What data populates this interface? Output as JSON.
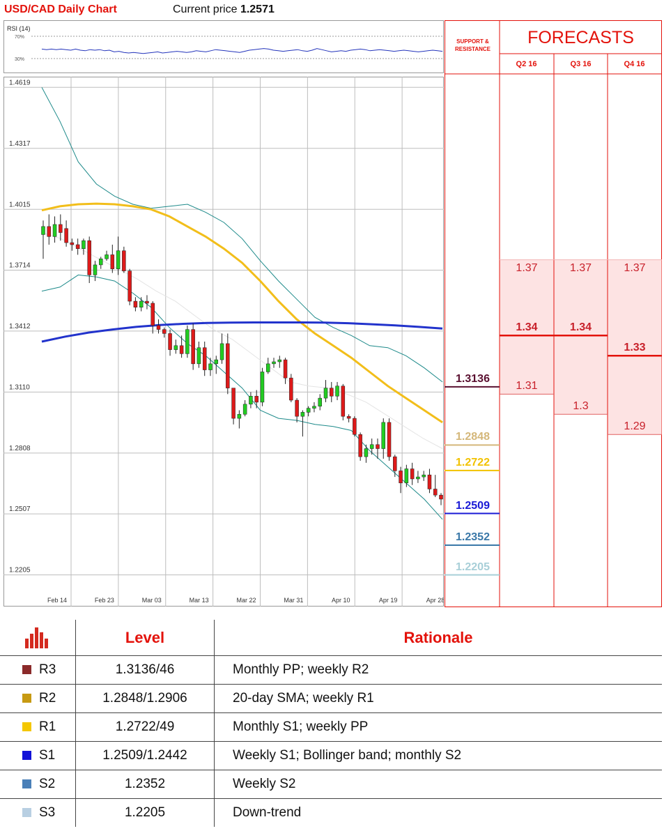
{
  "header": {
    "title": "USD/CAD Daily Chart",
    "price_label": "Current price",
    "price_value": "1.2571"
  },
  "rsi": {
    "label": "RSI (14)",
    "levels": [
      "70%",
      "30%"
    ],
    "values": [
      47,
      46,
      47,
      46,
      47,
      46,
      45,
      47,
      45,
      44,
      46,
      45,
      46,
      44,
      45,
      42,
      43,
      41,
      40,
      41,
      40,
      39,
      40,
      41,
      42,
      40,
      41,
      42,
      43,
      42,
      41,
      42,
      44,
      43,
      42,
      44,
      46,
      45,
      44,
      43,
      42,
      41,
      43,
      45,
      46,
      47,
      48,
      47,
      45,
      44,
      43,
      44,
      45,
      46,
      44,
      43,
      45,
      48,
      46,
      44,
      42,
      43,
      44,
      43,
      45,
      46,
      47,
      46,
      44,
      45,
      46,
      45,
      44,
      43,
      44,
      45,
      44,
      43,
      42,
      43,
      44,
      45,
      44,
      43
    ]
  },
  "chart_data": {
    "type": "candlestick",
    "title": "USD/CAD Daily Chart",
    "y_ticks": [
      "1.4619",
      "1.4317",
      "1.4015",
      "1.3714",
      "1.3412",
      "1.3110",
      "1.2808",
      "1.2507",
      "1.2205"
    ],
    "ylim": [
      1.21,
      1.462
    ],
    "x_ticks": [
      "Feb 14",
      "Feb 23",
      "Mar 03",
      "Mar 13",
      "Mar 22",
      "Mar 31",
      "Apr 10",
      "Apr 19",
      "Apr 28"
    ],
    "candles": [
      {
        "o": 1.389,
        "h": 1.396,
        "l": 1.377,
        "c": 1.393
      },
      {
        "o": 1.393,
        "h": 1.399,
        "l": 1.384,
        "c": 1.388
      },
      {
        "o": 1.388,
        "h": 1.398,
        "l": 1.385,
        "c": 1.394
      },
      {
        "o": 1.394,
        "h": 1.399,
        "l": 1.386,
        "c": 1.39
      },
      {
        "o": 1.392,
        "h": 1.396,
        "l": 1.383,
        "c": 1.385
      },
      {
        "o": 1.385,
        "h": 1.387,
        "l": 1.381,
        "c": 1.384
      },
      {
        "o": 1.384,
        "h": 1.387,
        "l": 1.379,
        "c": 1.382
      },
      {
        "o": 1.382,
        "h": 1.387,
        "l": 1.379,
        "c": 1.386
      },
      {
        "o": 1.386,
        "h": 1.388,
        "l": 1.365,
        "c": 1.369
      },
      {
        "o": 1.369,
        "h": 1.376,
        "l": 1.366,
        "c": 1.374
      },
      {
        "o": 1.374,
        "h": 1.378,
        "l": 1.372,
        "c": 1.377
      },
      {
        "o": 1.377,
        "h": 1.381,
        "l": 1.376,
        "c": 1.379
      },
      {
        "o": 1.379,
        "h": 1.384,
        "l": 1.37,
        "c": 1.372
      },
      {
        "o": 1.372,
        "h": 1.388,
        "l": 1.369,
        "c": 1.381
      },
      {
        "o": 1.381,
        "h": 1.383,
        "l": 1.37,
        "c": 1.371
      },
      {
        "o": 1.371,
        "h": 1.372,
        "l": 1.354,
        "c": 1.356
      },
      {
        "o": 1.356,
        "h": 1.358,
        "l": 1.351,
        "c": 1.353
      },
      {
        "o": 1.353,
        "h": 1.358,
        "l": 1.351,
        "c": 1.356
      },
      {
        "o": 1.356,
        "h": 1.359,
        "l": 1.352,
        "c": 1.355
      },
      {
        "o": 1.355,
        "h": 1.356,
        "l": 1.34,
        "c": 1.344
      },
      {
        "o": 1.344,
        "h": 1.347,
        "l": 1.34,
        "c": 1.342
      },
      {
        "o": 1.342,
        "h": 1.343,
        "l": 1.338,
        "c": 1.34
      },
      {
        "o": 1.34,
        "h": 1.342,
        "l": 1.329,
        "c": 1.332
      },
      {
        "o": 1.332,
        "h": 1.337,
        "l": 1.33,
        "c": 1.334
      },
      {
        "o": 1.334,
        "h": 1.339,
        "l": 1.328,
        "c": 1.33
      },
      {
        "o": 1.33,
        "h": 1.344,
        "l": 1.328,
        "c": 1.342
      },
      {
        "o": 1.342,
        "h": 1.345,
        "l": 1.322,
        "c": 1.325
      },
      {
        "o": 1.325,
        "h": 1.336,
        "l": 1.323,
        "c": 1.333
      },
      {
        "o": 1.333,
        "h": 1.336,
        "l": 1.319,
        "c": 1.322
      },
      {
        "o": 1.322,
        "h": 1.328,
        "l": 1.319,
        "c": 1.325
      },
      {
        "o": 1.325,
        "h": 1.329,
        "l": 1.32,
        "c": 1.327
      },
      {
        "o": 1.327,
        "h": 1.34,
        "l": 1.325,
        "c": 1.335
      },
      {
        "o": 1.335,
        "h": 1.34,
        "l": 1.31,
        "c": 1.313
      },
      {
        "o": 1.313,
        "h": 1.313,
        "l": 1.295,
        "c": 1.298
      },
      {
        "o": 1.298,
        "h": 1.302,
        "l": 1.293,
        "c": 1.3
      },
      {
        "o": 1.3,
        "h": 1.307,
        "l": 1.299,
        "c": 1.305
      },
      {
        "o": 1.305,
        "h": 1.311,
        "l": 1.303,
        "c": 1.309
      },
      {
        "o": 1.309,
        "h": 1.312,
        "l": 1.303,
        "c": 1.306
      },
      {
        "o": 1.306,
        "h": 1.323,
        "l": 1.304,
        "c": 1.321
      },
      {
        "o": 1.321,
        "h": 1.328,
        "l": 1.32,
        "c": 1.325
      },
      {
        "o": 1.325,
        "h": 1.328,
        "l": 1.323,
        "c": 1.326
      },
      {
        "o": 1.326,
        "h": 1.329,
        "l": 1.323,
        "c": 1.327
      },
      {
        "o": 1.327,
        "h": 1.328,
        "l": 1.315,
        "c": 1.318
      },
      {
        "o": 1.318,
        "h": 1.32,
        "l": 1.306,
        "c": 1.307
      },
      {
        "o": 1.307,
        "h": 1.308,
        "l": 1.296,
        "c": 1.299
      },
      {
        "o": 1.299,
        "h": 1.302,
        "l": 1.289,
        "c": 1.301
      },
      {
        "o": 1.301,
        "h": 1.304,
        "l": 1.299,
        "c": 1.303
      },
      {
        "o": 1.303,
        "h": 1.306,
        "l": 1.301,
        "c": 1.304
      },
      {
        "o": 1.304,
        "h": 1.31,
        "l": 1.302,
        "c": 1.308
      },
      {
        "o": 1.308,
        "h": 1.317,
        "l": 1.306,
        "c": 1.313
      },
      {
        "o": 1.313,
        "h": 1.316,
        "l": 1.306,
        "c": 1.309
      },
      {
        "o": 1.309,
        "h": 1.316,
        "l": 1.307,
        "c": 1.314
      },
      {
        "o": 1.314,
        "h": 1.315,
        "l": 1.297,
        "c": 1.299
      },
      {
        "o": 1.299,
        "h": 1.3,
        "l": 1.296,
        "c": 1.298
      },
      {
        "o": 1.298,
        "h": 1.299,
        "l": 1.289,
        "c": 1.29
      },
      {
        "o": 1.29,
        "h": 1.291,
        "l": 1.277,
        "c": 1.279
      },
      {
        "o": 1.279,
        "h": 1.285,
        "l": 1.276,
        "c": 1.283
      },
      {
        "o": 1.283,
        "h": 1.288,
        "l": 1.28,
        "c": 1.285
      },
      {
        "o": 1.285,
        "h": 1.288,
        "l": 1.278,
        "c": 1.283
      },
      {
        "o": 1.283,
        "h": 1.298,
        "l": 1.278,
        "c": 1.296
      },
      {
        "o": 1.296,
        "h": 1.298,
        "l": 1.277,
        "c": 1.279
      },
      {
        "o": 1.279,
        "h": 1.28,
        "l": 1.269,
        "c": 1.272
      },
      {
        "o": 1.272,
        "h": 1.274,
        "l": 1.261,
        "c": 1.266
      },
      {
        "o": 1.266,
        "h": 1.275,
        "l": 1.264,
        "c": 1.273
      },
      {
        "o": 1.273,
        "h": 1.276,
        "l": 1.265,
        "c": 1.268
      },
      {
        "o": 1.268,
        "h": 1.272,
        "l": 1.266,
        "c": 1.269
      },
      {
        "o": 1.269,
        "h": 1.272,
        "l": 1.267,
        "c": 1.27
      },
      {
        "o": 1.27,
        "h": 1.273,
        "l": 1.261,
        "c": 1.263
      },
      {
        "o": 1.263,
        "h": 1.27,
        "l": 1.259,
        "c": 1.26
      },
      {
        "o": 1.26,
        "h": 1.261,
        "l": 1.255,
        "c": 1.258
      }
    ],
    "ma_yellow": [
      1.401,
      1.403,
      1.404,
      1.4043,
      1.404,
      1.403,
      1.4015,
      1.398,
      1.393,
      1.388,
      1.382,
      1.375,
      1.366,
      1.356,
      1.347,
      1.34,
      1.334,
      1.328,
      1.321,
      1.314,
      1.308,
      1.302,
      1.296
    ],
    "ma_blue": [
      1.336,
      1.3385,
      1.3405,
      1.342,
      1.3433,
      1.3442,
      1.3448,
      1.3452,
      1.3454,
      1.3455,
      1.3455,
      1.3455,
      1.3454,
      1.3451,
      1.3446,
      1.344,
      1.3433,
      1.3425
    ],
    "bb_upper": [
      1.4619,
      1.445,
      1.425,
      1.414,
      1.408,
      1.404,
      1.402,
      1.403,
      1.404,
      1.4,
      1.395,
      1.387,
      1.376,
      1.366,
      1.357,
      1.348,
      1.343,
      1.339,
      1.334,
      1.333,
      1.329,
      1.323,
      1.316
    ],
    "bb_lower": [
      1.361,
      1.363,
      1.369,
      1.368,
      1.366,
      1.36,
      1.353,
      1.343,
      1.335,
      1.329,
      1.321,
      1.313,
      1.302,
      1.298,
      1.297,
      1.295,
      1.294,
      1.292,
      1.282,
      1.274,
      1.266,
      1.258,
      1.248
    ],
    "bb_mid": [
      1.39,
      1.387,
      1.382,
      1.377,
      1.372,
      1.367,
      1.361,
      1.356,
      1.349,
      1.342,
      1.337,
      1.33,
      1.323,
      1.316,
      1.314,
      1.313,
      1.31,
      1.306,
      1.3,
      1.294,
      1.288,
      1.283
    ],
    "support_resistance": [
      {
        "label": "1.3136",
        "value": 1.3136,
        "color": "#5a1030"
      },
      {
        "label": "1.2848",
        "value": 1.2848,
        "color": "#d4b77a"
      },
      {
        "label": "1.2722",
        "value": 1.2722,
        "color": "#f2c200"
      },
      {
        "label": "1.2509",
        "value": 1.2509,
        "color": "#1a1ad6"
      },
      {
        "label": "1.2352",
        "value": 1.2352,
        "color": "#3a78a8"
      },
      {
        "label": "1.2205",
        "value": 1.2205,
        "color": "#a8cfd8"
      }
    ]
  },
  "panel": {
    "sr_header": "SUPPORT & RESISTANCE",
    "forecast_title": "FORECASTS",
    "quarters": [
      "Q2 16",
      "Q3 16",
      "Q4 16"
    ],
    "forecasts": [
      {
        "high": "1.37",
        "mid": "1.34",
        "low": "1.31"
      },
      {
        "high": "1.37",
        "mid": "1.34",
        "low": "1.3"
      },
      {
        "high": "1.37",
        "mid": "1.33",
        "low": "1.29"
      }
    ]
  },
  "levels_table": {
    "headers": [
      "Level",
      "Rationale"
    ],
    "rows": [
      {
        "name": "R3",
        "level": "1.3136/46",
        "rationale": "Monthly PP; weekly R2",
        "color": "#8b2a2a"
      },
      {
        "name": "R2",
        "level": "1.2848/1.2906",
        "rationale": "20-day SMA; weekly R1",
        "color": "#c79a12"
      },
      {
        "name": "R1",
        "level": "1.2722/49",
        "rationale": "Monthly S1; weekly PP",
        "color": "#f4c700"
      },
      {
        "name": "S1",
        "level": "1.2509/1.2442",
        "rationale": "Weekly S1; Bollinger band; monthly S2",
        "color": "#1212d8"
      },
      {
        "name": "S2",
        "level": "1.2352",
        "rationale": "Weekly S2",
        "color": "#4a80b8"
      },
      {
        "name": "S3",
        "level": "1.2205",
        "rationale": "Down-trend",
        "color": "#b8cfe2"
      }
    ]
  }
}
